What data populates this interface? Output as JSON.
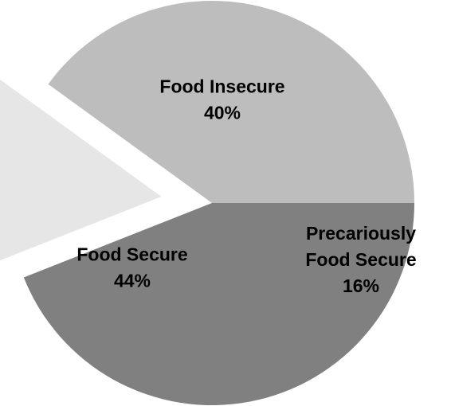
{
  "chart_data": {
    "type": "pie",
    "slices": [
      {
        "label_lines": [
          "Food Insecure"
        ],
        "value_text": "40%",
        "value": 40,
        "color": "#bdbdbd",
        "exploded": false
      },
      {
        "label_lines": [
          "Precariously",
          "Food Secure"
        ],
        "value_text": "16%",
        "value": 16,
        "color": "#e6e6e6",
        "exploded": true
      },
      {
        "label_lines": [
          "Food Secure"
        ],
        "value_text": "44%",
        "value": 44,
        "color": "#808080",
        "exploded": false
      }
    ],
    "legend": "none"
  }
}
